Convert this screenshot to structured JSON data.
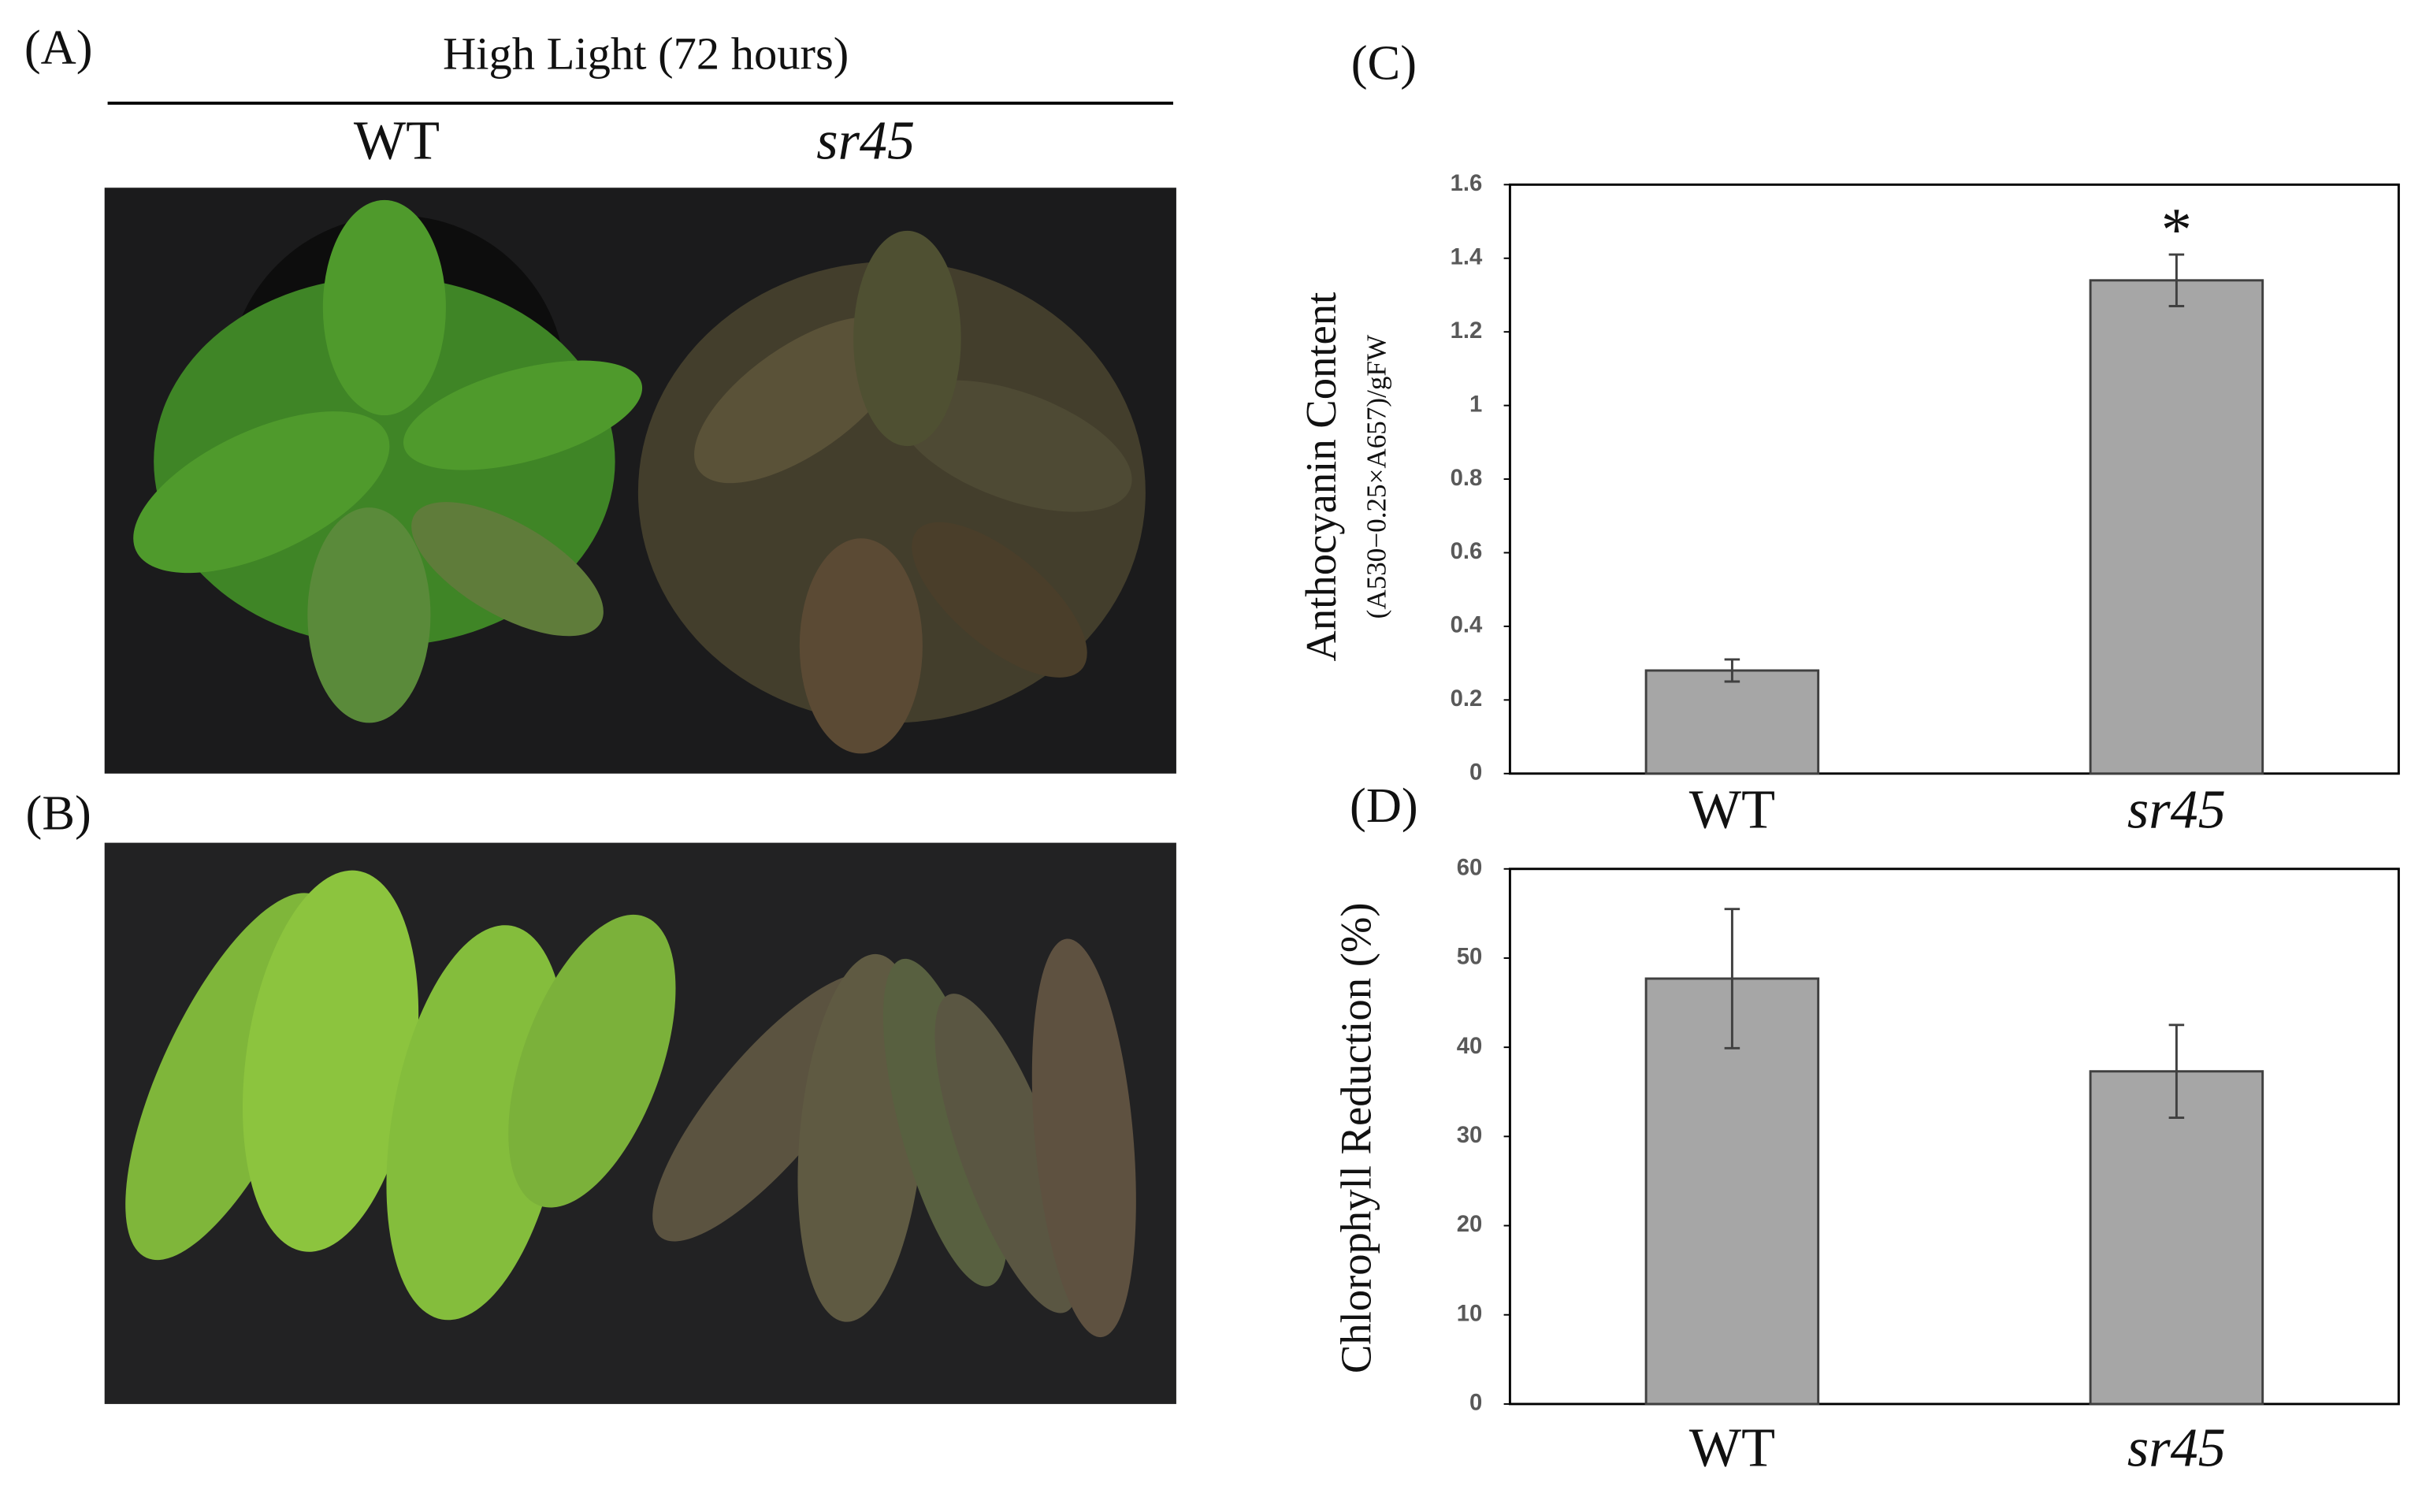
{
  "figure": {
    "panel_labels": [
      "(A)",
      "(B)",
      "(C)",
      "(D)"
    ],
    "header": "High Light (72 hours)",
    "photo_labels": [
      "WT",
      "sr45"
    ]
  },
  "chart_data": [
    {
      "type": "bar",
      "ylabel": "Anthocyanin Content",
      "ylabel_sub": "(A530−0.25×A657)/gFW",
      "categories": [
        "WT",
        "sr45"
      ],
      "values": [
        0.28,
        1.34
      ],
      "errors": [
        0.03,
        0.07
      ],
      "color": "#a6a6a6",
      "ylim": [
        0,
        1.6
      ],
      "yticks": [
        0,
        0.2,
        0.4,
        0.6,
        0.8,
        1,
        1.2,
        1.4,
        1.6
      ],
      "annotation": "*"
    },
    {
      "type": "bar",
      "ylabel": "Chlorophyll Reduction (%)",
      "categories": [
        "WT",
        "sr45"
      ],
      "values": [
        47.7,
        37.3
      ],
      "errors": [
        7.8,
        5.2
      ],
      "color": "#a6a6a6",
      "ylim": [
        0,
        60
      ],
      "yticks": [
        0,
        10,
        20,
        30,
        40,
        50,
        60
      ]
    }
  ]
}
